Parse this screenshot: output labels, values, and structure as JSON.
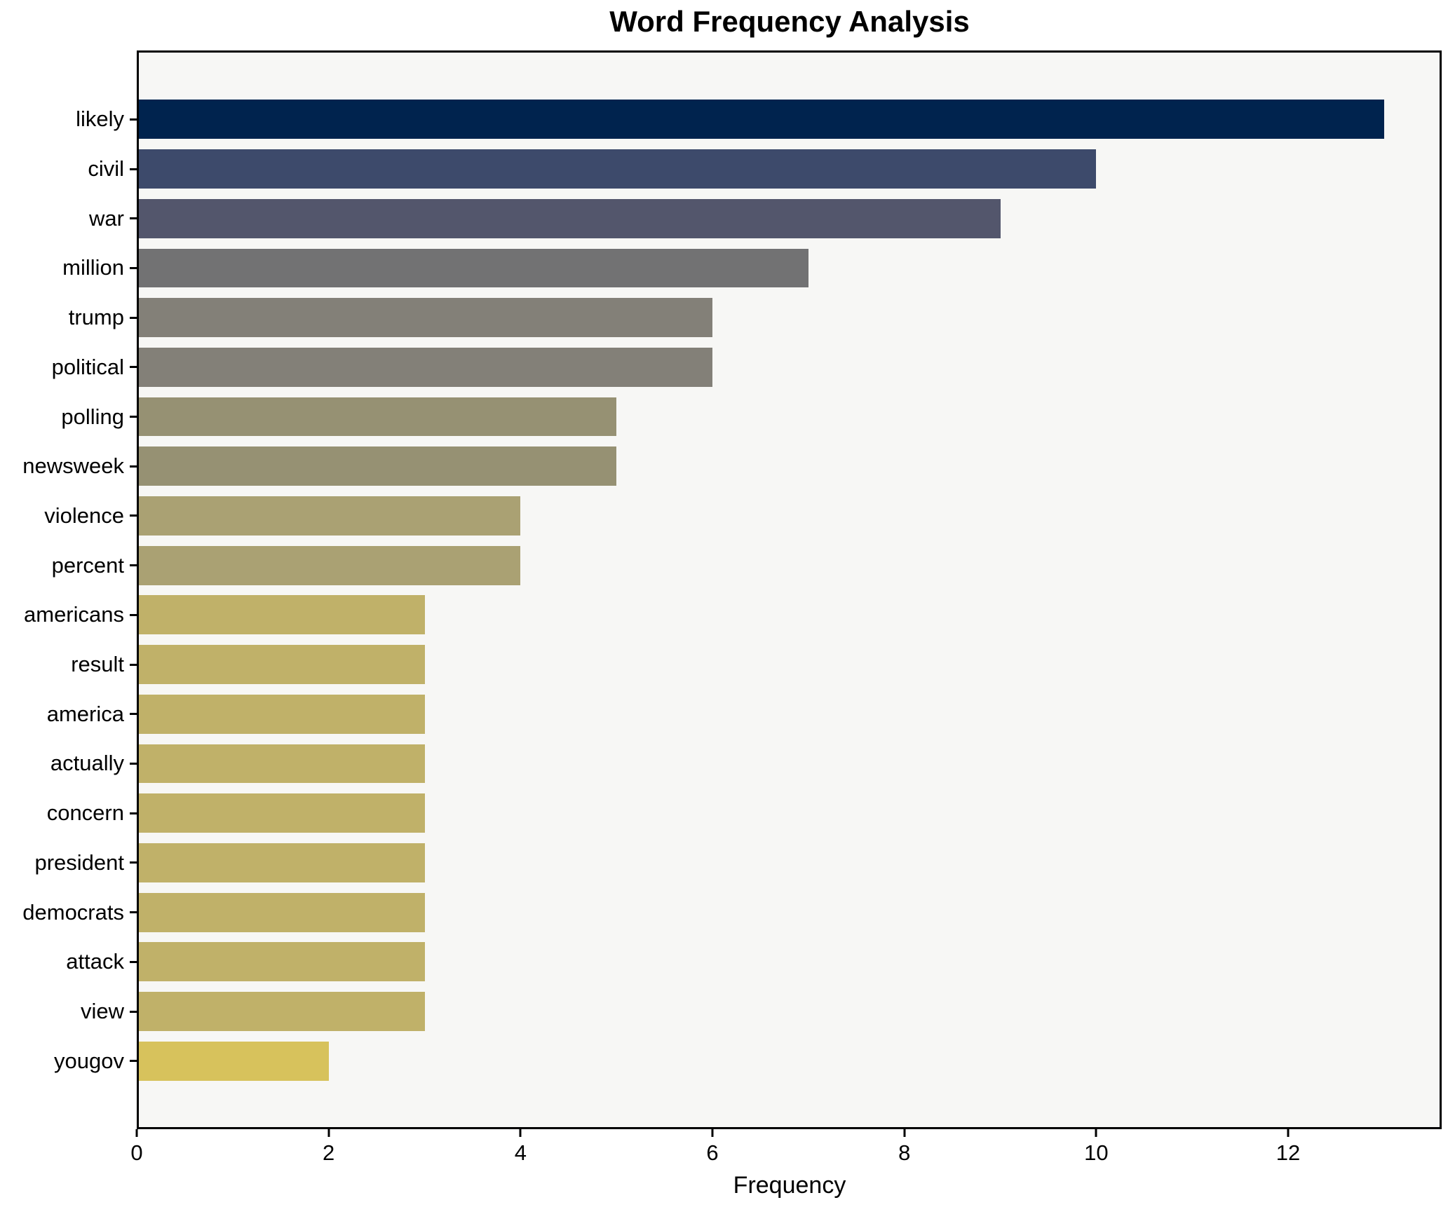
{
  "chart_data": {
    "type": "bar",
    "orientation": "horizontal",
    "title": "Word Frequency Analysis",
    "xlabel": "Frequency",
    "ylabel": "",
    "categories": [
      "likely",
      "civil",
      "war",
      "million",
      "trump",
      "political",
      "polling",
      "newsweek",
      "violence",
      "percent",
      "americans",
      "result",
      "america",
      "actually",
      "concern",
      "president",
      "democrats",
      "attack",
      "view",
      "yougov"
    ],
    "values": [
      13,
      10,
      9,
      7,
      6,
      6,
      5,
      5,
      4,
      4,
      3,
      3,
      3,
      3,
      3,
      3,
      3,
      3,
      3,
      2
    ],
    "bar_colors": [
      "#00234e",
      "#3d4a6b",
      "#53566c",
      "#727273",
      "#838078",
      "#838078",
      "#969173",
      "#969173",
      "#aaa173",
      "#aaa173",
      "#c0b169",
      "#c0b169",
      "#c0b169",
      "#c0b169",
      "#c0b169",
      "#c0b169",
      "#c0b169",
      "#c0b169",
      "#c0b169",
      "#d7c25c"
    ],
    "xlim": [
      0,
      13.6
    ],
    "xticks": [
      0,
      2,
      4,
      6,
      8,
      10,
      12
    ],
    "grid": false,
    "legend": null,
    "plot_background": "#f7f7f5",
    "figure_background": "#ffffff",
    "spine_color": "#000000"
  }
}
